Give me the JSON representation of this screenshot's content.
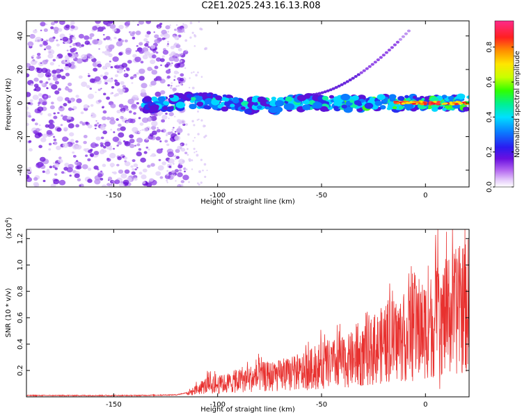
{
  "title": "C2E1.2025.243.16.13.R08",
  "chart_data": [
    {
      "type": "heatmap",
      "name": "spectrogram",
      "xlabel": "Height of straight line (km)",
      "ylabel": "Frequency (Hz)",
      "xlim": [
        -192,
        21
      ],
      "ylim": [
        -50,
        49
      ],
      "xticks": [
        -150,
        -100,
        -50,
        0
      ],
      "xtick_labels": [
        "-150",
        "-100",
        "-50",
        "0"
      ],
      "yticks": [
        -40,
        -20,
        0,
        20,
        40
      ],
      "ytick_labels": [
        "-40",
        "-20",
        "0",
        "20",
        "40"
      ],
      "colorbar": {
        "label": "Normalized spectral amplitude",
        "range": [
          0,
          0.95
        ],
        "ticks": [
          0,
          0.2,
          0.4,
          0.6,
          0.8
        ],
        "tick_labels": [
          "0.0",
          "0.2",
          "0.4",
          "0.6",
          "0.8"
        ]
      },
      "features": {
        "noise_region_x": [
          -192,
          -115
        ],
        "carrier_line": {
          "x_start": -135,
          "x_end": 21,
          "freq": 0,
          "max_amplitude": 0.95
        },
        "side_tone": {
          "x_start": -55,
          "x_end": -8,
          "freq_start": 5,
          "freq_end": 43
        }
      }
    },
    {
      "type": "line",
      "name": "snr",
      "xlabel": "Height of straight line (km)",
      "ylabel": "SNR (10 * v/v)",
      "y_multiplier": "(x10",
      "y_multiplier_exp": "4",
      "y_multiplier_close": ")",
      "xlim": [
        -192,
        21
      ],
      "ylim": [
        0,
        1.27
      ],
      "xticks": [
        -150,
        -100,
        -50,
        0
      ],
      "xtick_labels": [
        "-150",
        "-100",
        "-50",
        "0"
      ],
      "yticks": [
        0.2,
        0.4,
        0.6,
        0.8,
        1.0,
        1.2
      ],
      "ytick_labels": [
        "0.2",
        "0.4",
        "0.6",
        "0.8",
        "1.0",
        "1.2"
      ],
      "color": "#e8312f",
      "series": [
        {
          "name": "SNR",
          "x": [
            -192,
            -140,
            -120,
            -112,
            -105,
            -100,
            -90,
            -80,
            -70,
            -60,
            -50,
            -40,
            -30,
            -20,
            -10,
            0,
            10,
            21
          ],
          "values": [
            0.01,
            0.01,
            0.015,
            0.04,
            0.09,
            0.09,
            0.12,
            0.15,
            0.16,
            0.18,
            0.24,
            0.26,
            0.3,
            0.4,
            0.45,
            0.52,
            0.6,
            0.7
          ]
        }
      ],
      "peak": {
        "x": 6,
        "value": 1.27
      }
    }
  ]
}
